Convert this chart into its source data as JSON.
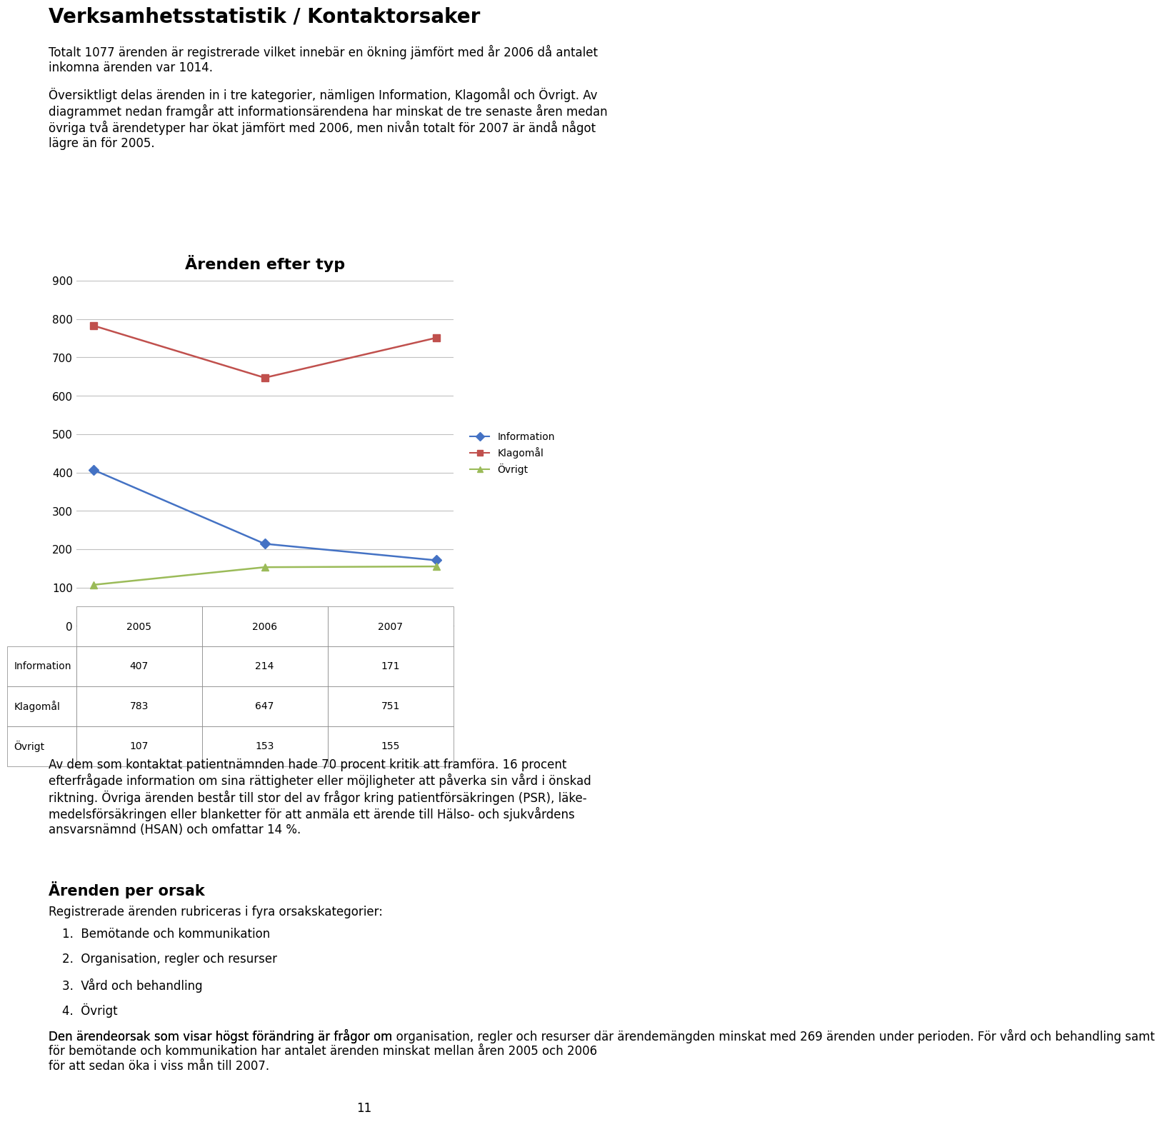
{
  "title": "Ärenden efter typ",
  "years": [
    2005,
    2006,
    2007
  ],
  "series": {
    "Information": {
      "values": [
        407,
        214,
        171
      ],
      "color": "#4472C4",
      "marker": "D",
      "label": "Information"
    },
    "Klagomål": {
      "values": [
        783,
        647,
        751
      ],
      "color": "#C0504D",
      "marker": "s",
      "label": "Klagomål"
    },
    "Övrigt": {
      "values": [
        107,
        153,
        155
      ],
      "color": "#9BBB59",
      "marker": "^",
      "label": "Övrigt"
    }
  },
  "table_rows": [
    [
      "Information",
      "407",
      "214",
      "171"
    ],
    [
      "Klagomål",
      "783",
      "647",
      "751"
    ],
    [
      "Övrigt",
      "107",
      "153",
      "155"
    ]
  ],
  "table_header": [
    "",
    "2005",
    "2006",
    "2007"
  ],
  "ylim": [
    0,
    900
  ],
  "yticks": [
    0,
    100,
    200,
    300,
    400,
    500,
    600,
    700,
    800,
    900
  ],
  "background_color": "#FFFFFF",
  "chart_bg_color": "#FFFFFF",
  "grid_color": "#C0C0C0",
  "title_fontsize": 16,
  "axis_fontsize": 11,
  "legend_fontsize": 10,
  "page_title": "Verksamhetsstatistik / Kontaktorsaker",
  "paragraph1": "Totalt 1077 ärenden är registrerade vilket innebär en ökning jämfört med år 2006 då antalet\ninkomna ärenden var 1014.",
  "paragraph2": "Översiktligt delas ärenden in i tre kategorier, nämligen Information, Klagomål och Övrigt. Av\ndiagrammet nedan framgår att informationsärendena har minskat de tre senaste åren medan\növriga två ärendetyper har ökat jämfört med 2006, men nivån totalt för 2007 är ändå något\nlägre än för 2005.",
  "bottom_text1": "Av dem som kontaktat patientnämnden hade 70 procent kritik att framföra. 16 procent\nefterfrågade information om sina rättigheter eller möjligheter att påverka sin vård i önskad\nriktning. Övriga ärenden består till stor del av frågor kring patientförsäkringen (PSR), läke-\nmedelsförsäkringen eller blanketter för att anmäla ett ärende till Hälso- och sjukvårdens\nansvarsnämnd (HSAN) och omfattar 14 %.",
  "section_title": "Ärenden per orsak",
  "section_text": "Registrerade ärenden rubriceras i fyra orsakskategorier:",
  "list_items": [
    "1.  Bemötande och kommunikation",
    "2.  Organisation, regler och resurser",
    "3.  Vård och behandling",
    "4.  Övrigt"
  ],
  "bottom_paragraph": "Den ärendeorsak som visar högst förändring är frågor om organisation, regler och resurser där ärendemängden minskat med 269 ärenden under perioden. För vård och behandling samt för bemötande och kommunikation har antalet ärenden minskat mellan åren 2005 och 2006 för att sedan öka i viss mån till 2007.",
  "bold_phrase": "organisation, regler och resurser",
  "page_number": "11"
}
